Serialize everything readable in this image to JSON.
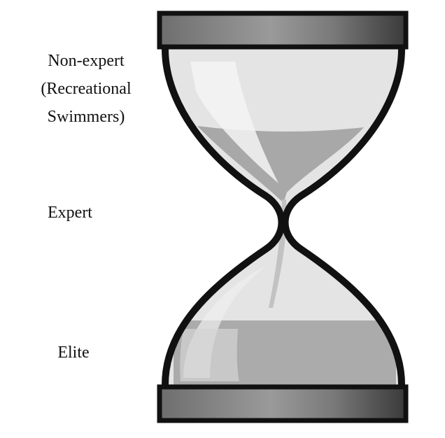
{
  "labels": {
    "non_expert_line1": "Non-expert",
    "non_expert_line2": "(Recreational",
    "non_expert_line3": "Swimmers)",
    "expert": "Expert",
    "elite": "Elite"
  },
  "colors": {
    "frame": "#111111",
    "glass": "#e3e3e3",
    "sand": "#a9a9a9",
    "highlight": "#f2f2f2"
  },
  "icon": "hourglass-icon"
}
